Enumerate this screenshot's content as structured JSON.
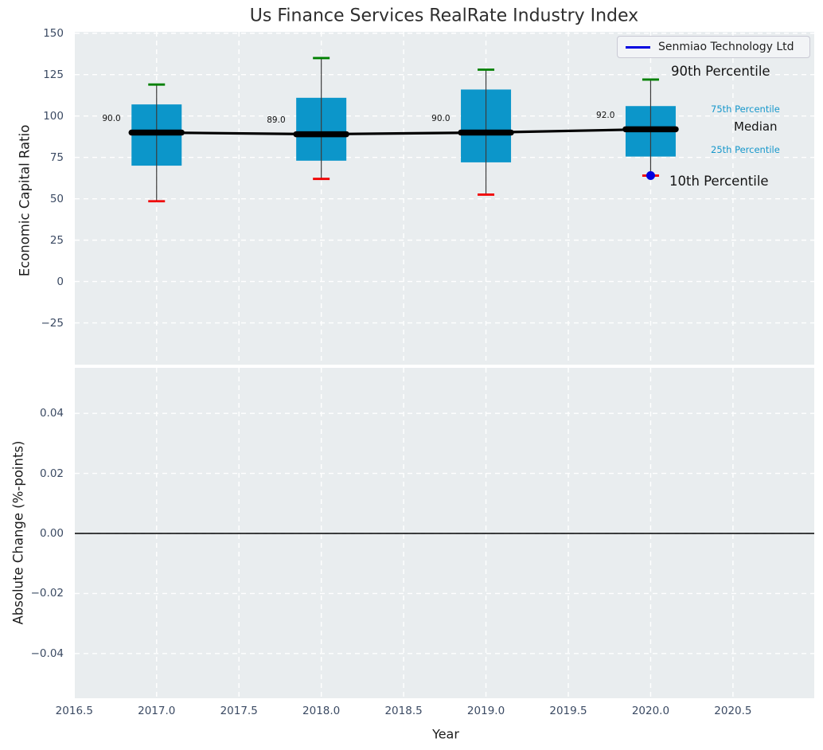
{
  "chart_data": {
    "type": "boxplot",
    "title": "Us Finance Services RealRate Industry Index",
    "xlabel": "Year",
    "xlim": [
      2016.5,
      2021.0
    ],
    "grid": "white dashed on light-gray panels",
    "legend_position": "top-right",
    "xticks": [
      {
        "v": 2016.5,
        "label": "2016.5"
      },
      {
        "v": 2017.0,
        "label": "2017.0"
      },
      {
        "v": 2017.5,
        "label": "2017.5"
      },
      {
        "v": 2018.0,
        "label": "2018.0"
      },
      {
        "v": 2018.5,
        "label": "2018.5"
      },
      {
        "v": 2019.0,
        "label": "2019.0"
      },
      {
        "v": 2019.5,
        "label": "2019.5"
      },
      {
        "v": 2020.0,
        "label": "2020.0"
      },
      {
        "v": 2020.5,
        "label": "2020.5"
      }
    ],
    "top_panel": {
      "ylabel": "Economic Capital Ratio",
      "ylim": [
        -50,
        151
      ],
      "yticks": [
        {
          "v": 150,
          "label": "150"
        },
        {
          "v": 125,
          "label": "125"
        },
        {
          "v": 100,
          "label": "100"
        },
        {
          "v": 75,
          "label": "75"
        },
        {
          "v": 50,
          "label": "50"
        },
        {
          "v": 25,
          "label": "25"
        },
        {
          "v": 0,
          "label": "0"
        },
        {
          "v": -25,
          "label": "−25"
        }
      ],
      "boxes": [
        {
          "year": 2017,
          "p90": 119,
          "p75": 107,
          "median": 90,
          "p25": 70,
          "p10": 48.5,
          "median_label": "90.0"
        },
        {
          "year": 2018,
          "p90": 135,
          "p75": 111,
          "median": 89,
          "p25": 73,
          "p10": 62,
          "median_label": "89.0"
        },
        {
          "year": 2019,
          "p90": 128,
          "p75": 116,
          "median": 90,
          "p25": 72,
          "p10": 52.5,
          "median_label": "90.0"
        },
        {
          "year": 2020,
          "p90": 122,
          "p75": 106,
          "median": 92,
          "p25": 75.5,
          "p10": 64,
          "median_label": "92.0"
        }
      ],
      "company_series": {
        "name": "Senmiao Technology Ltd",
        "points": [
          {
            "year": 2020,
            "value": 64
          }
        ]
      },
      "annotations": {
        "p90": "90th Percentile",
        "p75": "75th Percentile",
        "median": "Median",
        "p25": "25th Percentile",
        "p10": "10th Percentile"
      }
    },
    "bottom_panel": {
      "ylabel": "Absolute Change (%-points)",
      "ylim": [
        -0.055,
        0.055
      ],
      "yticks": [
        {
          "v": 0.04,
          "label": "0.04"
        },
        {
          "v": 0.02,
          "label": "0.02"
        },
        {
          "v": 0,
          "label": "0.00"
        },
        {
          "v": -0.02,
          "label": "−0.02"
        },
        {
          "v": -0.04,
          "label": "−0.04"
        }
      ],
      "zero_line": 0.0
    },
    "colors": {
      "box_fill": "#0c96ca",
      "whisker": "#3c3c3c",
      "cap_high": "#008000",
      "cap_low": "#f00000",
      "median_line": "#000000",
      "company": "#0000e0",
      "plot_bg": "#e9edef",
      "grid": "#ffffff",
      "tick_text": "#3b4a63",
      "percentile_text": "#1697cb"
    }
  }
}
